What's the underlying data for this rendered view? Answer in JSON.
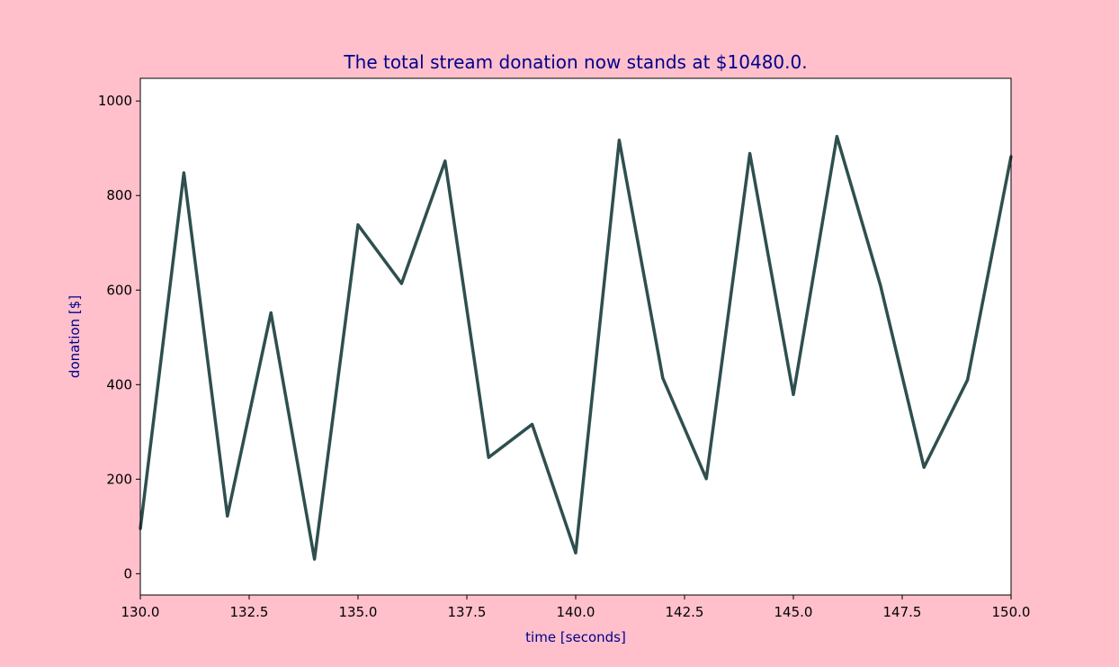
{
  "colors": {
    "figure_background": "#FFC0CB",
    "plot_background": "#FFFFFF",
    "line": "#2F4F4F",
    "title": "#00008B",
    "axis_label": "#00008B",
    "tick": "#000000"
  },
  "chart_data": {
    "type": "line",
    "title": "The total stream donation now stands at $10480.0.",
    "xlabel": "time [seconds]",
    "ylabel": "donation [$]",
    "xlim": [
      130.0,
      150.0
    ],
    "ylim": [
      -45,
      1048
    ],
    "x_ticks": [
      130.0,
      132.5,
      135.0,
      137.5,
      140.0,
      142.5,
      145.0,
      147.5,
      150.0
    ],
    "x_tick_labels": [
      "130.0",
      "132.5",
      "135.0",
      "137.5",
      "140.0",
      "142.5",
      "145.0",
      "147.5",
      "150.0"
    ],
    "y_ticks": [
      0,
      200,
      400,
      600,
      800,
      1000
    ],
    "y_tick_labels": [
      "0",
      "200",
      "400",
      "600",
      "800",
      "1000"
    ],
    "grid": false,
    "series": [
      {
        "x": [
          130,
          131,
          132,
          133,
          134,
          135,
          136,
          137,
          138,
          139,
          140,
          141,
          142,
          143,
          144,
          145,
          146,
          147,
          148,
          149,
          150
        ],
        "values": [
          95,
          848,
          122,
          552,
          31,
          738,
          614,
          873,
          246,
          316,
          44,
          917,
          414,
          201,
          889,
          379,
          925,
          610,
          225,
          410,
          883
        ]
      }
    ]
  }
}
